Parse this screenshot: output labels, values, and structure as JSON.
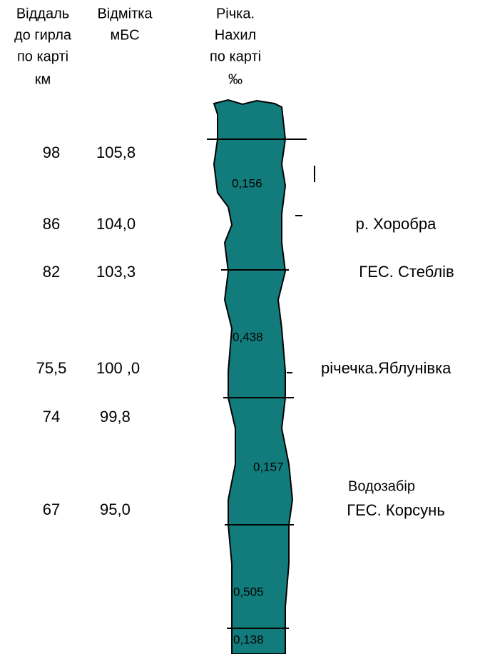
{
  "headers": {
    "distance": [
      "Віддаль",
      "до гирла",
      "по карті",
      "км"
    ],
    "elevation": [
      "Відмітка",
      "мБС"
    ],
    "river": [
      "Річка.",
      "Нахил",
      "по карті",
      "‰"
    ]
  },
  "rows": [
    {
      "distance": "98",
      "elevation": "105,8"
    },
    {
      "distance": "86",
      "elevation": "104,0",
      "place": [
        "р. Хоробра"
      ]
    },
    {
      "distance": "82",
      "elevation": "103,3",
      "place": [
        "ГЕС. Стеблів"
      ]
    },
    {
      "distance": "75,5",
      "elevation": "100 ,0",
      "place": [
        "річечка.Яблунівка"
      ]
    },
    {
      "distance": "74",
      "elevation": "99,8"
    },
    {
      "distance": "67",
      "elevation": "95,0",
      "place": [
        "Водозабір",
        "ГЕС. Корсунь"
      ]
    }
  ],
  "slopes": [
    "0,156",
    "0,438",
    "0,157",
    "0,505",
    "0,138"
  ]
}
